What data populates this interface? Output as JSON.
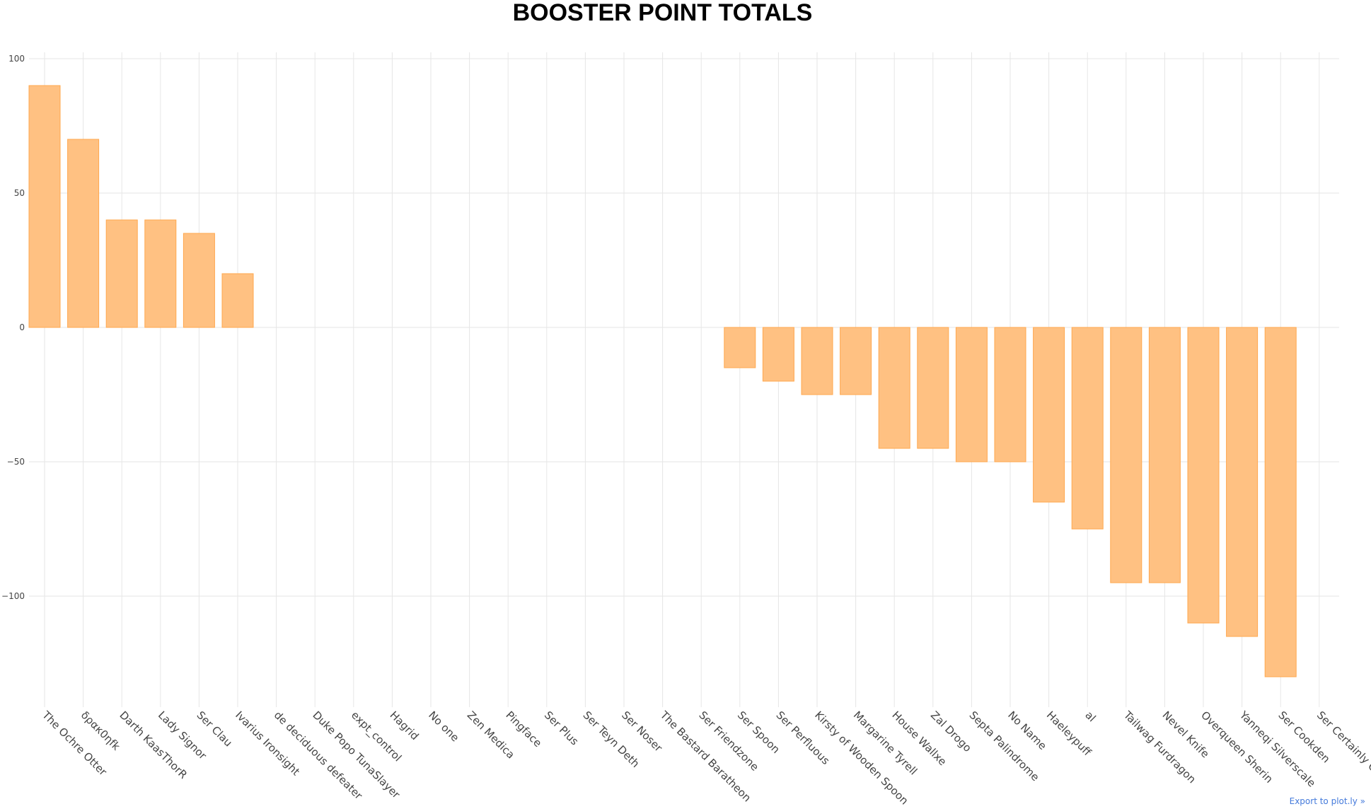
{
  "chart_data": {
    "type": "bar",
    "title": "BOOSTER POINT TOTALS",
    "xlabel": "",
    "ylabel": "",
    "ylim": [
      -145,
      102
    ],
    "yticks": [
      100,
      50,
      0,
      -50,
      -100
    ],
    "ytick_labels": [
      "100",
      "50",
      "0",
      "−50",
      "−100"
    ],
    "grid": true,
    "bar_color": "#ffc182",
    "bar_edge_color": "#ffa84f",
    "categories": [
      "The Ochre Otter",
      "δρακ0ηfk",
      "Darth KaasThorR",
      "Lady Signor",
      "Ser Clau",
      "Ivarius Ironsight",
      "de deciduous defeater",
      "Duke Popo TunaSlayer",
      "expt_control",
      "Hagrid",
      "No one",
      "Zen Medica",
      "Pingface",
      "Ser Plus",
      "Ser Teyn Deth",
      "Ser Noser",
      "The Bastard Baratheon",
      "Ser Friendzone",
      "Ser Spoon",
      "Ser Perfluous",
      "Kirsty of Wooden Spoon",
      "Margarine Tyrell",
      "House Wallxe",
      "Zal Drogo",
      "Septa Palindrome",
      "No Name",
      "Haeleypuff",
      "al",
      "Tailwag Furdragon",
      "Nevel Knife",
      "Overqueen Sherin",
      "Yanneqi Silverscale",
      "Ser Cookden",
      "Ser Certainly Can"
    ],
    "values": [
      90,
      70,
      40,
      40,
      35,
      20,
      0,
      0,
      0,
      0,
      0,
      0,
      0,
      0,
      0,
      0,
      0,
      0,
      -15,
      -20,
      -25,
      -25,
      -45,
      -45,
      -50,
      -50,
      -65,
      -75,
      -95,
      -95,
      -110,
      -115,
      -130,
      0
    ]
  },
  "export_label": "Export to plot.ly »"
}
